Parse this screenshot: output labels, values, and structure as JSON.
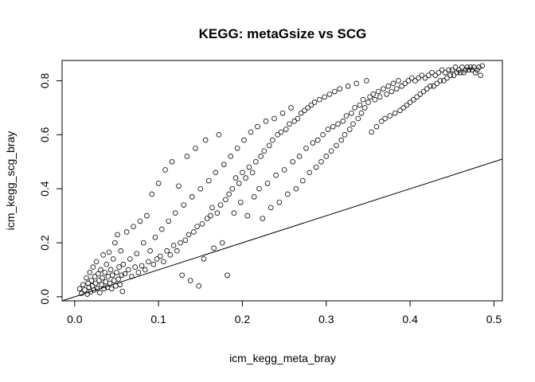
{
  "chart_data": {
    "type": "scatter",
    "title": "KEGG: metaGsize vs SCG",
    "xlabel": "icm_kegg_meta_bray",
    "ylabel": "icm_kegg_scg_bray",
    "xlim": [
      -0.015,
      0.51
    ],
    "ylim": [
      -0.015,
      0.875
    ],
    "xticks": [
      0.0,
      0.1,
      0.2,
      0.3,
      0.4,
      0.5
    ],
    "xtick_labels": [
      "0.0",
      "0.1",
      "0.2",
      "0.3",
      "0.4",
      "0.5"
    ],
    "yticks": [
      0.0,
      0.2,
      0.4,
      0.6,
      0.8
    ],
    "ytick_labels": [
      "0.0",
      "0.2",
      "0.4",
      "0.6",
      "0.8"
    ],
    "grid": false,
    "reference_line": {
      "intercept": 0,
      "slope": 1
    },
    "point_style": "open-circle",
    "series": [
      {
        "points": [
          [
            0.006,
            0.03
          ],
          [
            0.008,
            0.012
          ],
          [
            0.01,
            0.045
          ],
          [
            0.012,
            0.025
          ],
          [
            0.014,
            0.07
          ],
          [
            0.015,
            0.01
          ],
          [
            0.016,
            0.05
          ],
          [
            0.017,
            0.035
          ],
          [
            0.018,
            0.09
          ],
          [
            0.019,
            0.018
          ],
          [
            0.02,
            0.06
          ],
          [
            0.021,
            0.04
          ],
          [
            0.022,
            0.11
          ],
          [
            0.023,
            0.025
          ],
          [
            0.024,
            0.075
          ],
          [
            0.025,
            0.05
          ],
          [
            0.026,
            0.13
          ],
          [
            0.027,
            0.03
          ],
          [
            0.028,
            0.085
          ],
          [
            0.029,
            0.06
          ],
          [
            0.03,
            0.015
          ],
          [
            0.031,
            0.1
          ],
          [
            0.032,
            0.045
          ],
          [
            0.033,
            0.07
          ],
          [
            0.034,
            0.155
          ],
          [
            0.035,
            0.03
          ],
          [
            0.036,
            0.09
          ],
          [
            0.037,
            0.055
          ],
          [
            0.038,
            0.12
          ],
          [
            0.039,
            0.035
          ],
          [
            0.04,
            0.075
          ],
          [
            0.041,
            0.165
          ],
          [
            0.042,
            0.05
          ],
          [
            0.043,
            0.1
          ],
          [
            0.044,
            0.03
          ],
          [
            0.045,
            0.08
          ],
          [
            0.046,
            0.14
          ],
          [
            0.047,
            0.06
          ],
          [
            0.048,
            0.2
          ],
          [
            0.049,
            0.04
          ],
          [
            0.05,
            0.09
          ],
          [
            0.051,
            0.23
          ],
          [
            0.052,
            0.065
          ],
          [
            0.053,
            0.11
          ],
          [
            0.054,
            0.045
          ],
          [
            0.055,
            0.17
          ],
          [
            0.056,
            0.08
          ],
          [
            0.057,
            0.02
          ],
          [
            0.058,
            0.12
          ],
          [
            0.06,
            0.085
          ],
          [
            0.062,
            0.24
          ],
          [
            0.064,
            0.1
          ],
          [
            0.066,
            0.14
          ],
          [
            0.068,
            0.075
          ],
          [
            0.07,
            0.26
          ],
          [
            0.072,
            0.11
          ],
          [
            0.074,
            0.16
          ],
          [
            0.076,
            0.09
          ],
          [
            0.078,
            0.28
          ],
          [
            0.08,
            0.115
          ],
          [
            0.082,
            0.2
          ],
          [
            0.084,
            0.1
          ],
          [
            0.086,
            0.3
          ],
          [
            0.088,
            0.13
          ],
          [
            0.09,
            0.17
          ],
          [
            0.092,
            0.38
          ],
          [
            0.094,
            0.12
          ],
          [
            0.096,
            0.22
          ],
          [
            0.098,
            0.14
          ],
          [
            0.1,
            0.42
          ],
          [
            0.102,
            0.15
          ],
          [
            0.104,
            0.25
          ],
          [
            0.106,
            0.13
          ],
          [
            0.108,
            0.47
          ],
          [
            0.11,
            0.17
          ],
          [
            0.112,
            0.28
          ],
          [
            0.114,
            0.155
          ],
          [
            0.116,
            0.5
          ],
          [
            0.118,
            0.19
          ],
          [
            0.12,
            0.31
          ],
          [
            0.122,
            0.17
          ],
          [
            0.124,
            0.41
          ],
          [
            0.126,
            0.2
          ],
          [
            0.128,
            0.08
          ],
          [
            0.13,
            0.34
          ],
          [
            0.132,
            0.21
          ],
          [
            0.134,
            0.52
          ],
          [
            0.136,
            0.23
          ],
          [
            0.138,
            0.06
          ],
          [
            0.14,
            0.37
          ],
          [
            0.142,
            0.24
          ],
          [
            0.144,
            0.55
          ],
          [
            0.146,
            0.26
          ],
          [
            0.148,
            0.04
          ],
          [
            0.15,
            0.4
          ],
          [
            0.152,
            0.27
          ],
          [
            0.154,
            0.14
          ],
          [
            0.156,
            0.58
          ],
          [
            0.158,
            0.29
          ],
          [
            0.16,
            0.43
          ],
          [
            0.162,
            0.3
          ],
          [
            0.164,
            0.33
          ],
          [
            0.166,
            0.18
          ],
          [
            0.168,
            0.46
          ],
          [
            0.17,
            0.31
          ],
          [
            0.172,
            0.6
          ],
          [
            0.174,
            0.34
          ],
          [
            0.176,
            0.2
          ],
          [
            0.178,
            0.49
          ],
          [
            0.18,
            0.36
          ],
          [
            0.182,
            0.08
          ],
          [
            0.184,
            0.38
          ],
          [
            0.186,
            0.52
          ],
          [
            0.188,
            0.4
          ],
          [
            0.19,
            0.31
          ],
          [
            0.192,
            0.44
          ],
          [
            0.194,
            0.55
          ],
          [
            0.196,
            0.42
          ],
          [
            0.198,
            0.35
          ],
          [
            0.2,
            0.46
          ],
          [
            0.202,
            0.58
          ],
          [
            0.204,
            0.44
          ],
          [
            0.206,
            0.3
          ],
          [
            0.208,
            0.48
          ],
          [
            0.21,
            0.61
          ],
          [
            0.212,
            0.46
          ],
          [
            0.214,
            0.37
          ],
          [
            0.216,
            0.5
          ],
          [
            0.218,
            0.63
          ],
          [
            0.22,
            0.4
          ],
          [
            0.222,
            0.52
          ],
          [
            0.224,
            0.29
          ],
          [
            0.226,
            0.54
          ],
          [
            0.228,
            0.65
          ],
          [
            0.23,
            0.42
          ],
          [
            0.232,
            0.56
          ],
          [
            0.234,
            0.33
          ],
          [
            0.236,
            0.58
          ],
          [
            0.238,
            0.66
          ],
          [
            0.24,
            0.45
          ],
          [
            0.242,
            0.6
          ],
          [
            0.244,
            0.35
          ],
          [
            0.246,
            0.61
          ],
          [
            0.248,
            0.68
          ],
          [
            0.25,
            0.47
          ],
          [
            0.252,
            0.62
          ],
          [
            0.254,
            0.38
          ],
          [
            0.256,
            0.64
          ],
          [
            0.258,
            0.7
          ],
          [
            0.26,
            0.5
          ],
          [
            0.262,
            0.65
          ],
          [
            0.264,
            0.4
          ],
          [
            0.266,
            0.66
          ],
          [
            0.268,
            0.52
          ],
          [
            0.27,
            0.68
          ],
          [
            0.272,
            0.43
          ],
          [
            0.274,
            0.69
          ],
          [
            0.276,
            0.55
          ],
          [
            0.278,
            0.7
          ],
          [
            0.28,
            0.46
          ],
          [
            0.282,
            0.71
          ],
          [
            0.284,
            0.57
          ],
          [
            0.286,
            0.72
          ],
          [
            0.288,
            0.48
          ],
          [
            0.29,
            0.58
          ],
          [
            0.292,
            0.73
          ],
          [
            0.294,
            0.5
          ],
          [
            0.296,
            0.6
          ],
          [
            0.298,
            0.74
          ],
          [
            0.3,
            0.52
          ],
          [
            0.302,
            0.62
          ],
          [
            0.304,
            0.75
          ],
          [
            0.306,
            0.54
          ],
          [
            0.308,
            0.63
          ],
          [
            0.31,
            0.76
          ],
          [
            0.312,
            0.56
          ],
          [
            0.314,
            0.64
          ],
          [
            0.316,
            0.77
          ],
          [
            0.318,
            0.58
          ],
          [
            0.32,
            0.65
          ],
          [
            0.322,
            0.6
          ],
          [
            0.324,
            0.67
          ],
          [
            0.326,
            0.78
          ],
          [
            0.328,
            0.62
          ],
          [
            0.33,
            0.68
          ],
          [
            0.332,
            0.64
          ],
          [
            0.334,
            0.7
          ],
          [
            0.336,
            0.79
          ],
          [
            0.338,
            0.66
          ],
          [
            0.34,
            0.71
          ],
          [
            0.342,
            0.68
          ],
          [
            0.344,
            0.73
          ],
          [
            0.346,
            0.7
          ],
          [
            0.348,
            0.8
          ],
          [
            0.35,
            0.72
          ],
          [
            0.352,
            0.74
          ],
          [
            0.354,
            0.61
          ],
          [
            0.356,
            0.75
          ],
          [
            0.358,
            0.73
          ],
          [
            0.36,
            0.63
          ],
          [
            0.362,
            0.76
          ],
          [
            0.364,
            0.74
          ],
          [
            0.366,
            0.65
          ],
          [
            0.368,
            0.77
          ],
          [
            0.37,
            0.66
          ],
          [
            0.372,
            0.75
          ],
          [
            0.374,
            0.78
          ],
          [
            0.376,
            0.67
          ],
          [
            0.378,
            0.76
          ],
          [
            0.38,
            0.79
          ],
          [
            0.382,
            0.68
          ],
          [
            0.384,
            0.77
          ],
          [
            0.386,
            0.8
          ],
          [
            0.388,
            0.69
          ],
          [
            0.39,
            0.78
          ],
          [
            0.392,
            0.7
          ],
          [
            0.394,
            0.79
          ],
          [
            0.396,
            0.71
          ],
          [
            0.398,
            0.8
          ],
          [
            0.4,
            0.72
          ],
          [
            0.402,
            0.81
          ],
          [
            0.404,
            0.73
          ],
          [
            0.406,
            0.8
          ],
          [
            0.408,
            0.74
          ],
          [
            0.41,
            0.81
          ],
          [
            0.412,
            0.75
          ],
          [
            0.414,
            0.82
          ],
          [
            0.416,
            0.76
          ],
          [
            0.418,
            0.81
          ],
          [
            0.42,
            0.77
          ],
          [
            0.422,
            0.82
          ],
          [
            0.424,
            0.78
          ],
          [
            0.426,
            0.83
          ],
          [
            0.428,
            0.78
          ],
          [
            0.43,
            0.82
          ],
          [
            0.432,
            0.79
          ],
          [
            0.434,
            0.83
          ],
          [
            0.436,
            0.8
          ],
          [
            0.438,
            0.84
          ],
          [
            0.44,
            0.8
          ],
          [
            0.442,
            0.83
          ],
          [
            0.444,
            0.81
          ],
          [
            0.446,
            0.84
          ],
          [
            0.448,
            0.82
          ],
          [
            0.45,
            0.84
          ],
          [
            0.452,
            0.82
          ],
          [
            0.454,
            0.85
          ],
          [
            0.456,
            0.83
          ],
          [
            0.458,
            0.84
          ],
          [
            0.46,
            0.83
          ],
          [
            0.462,
            0.85
          ],
          [
            0.464,
            0.83
          ],
          [
            0.466,
            0.84
          ],
          [
            0.468,
            0.85
          ],
          [
            0.47,
            0.84
          ],
          [
            0.472,
            0.85
          ],
          [
            0.474,
            0.84
          ],
          [
            0.476,
            0.85
          ],
          [
            0.478,
            0.83
          ],
          [
            0.48,
            0.84
          ],
          [
            0.482,
            0.85
          ],
          [
            0.484,
            0.82
          ],
          [
            0.486,
            0.855
          ]
        ]
      }
    ]
  }
}
